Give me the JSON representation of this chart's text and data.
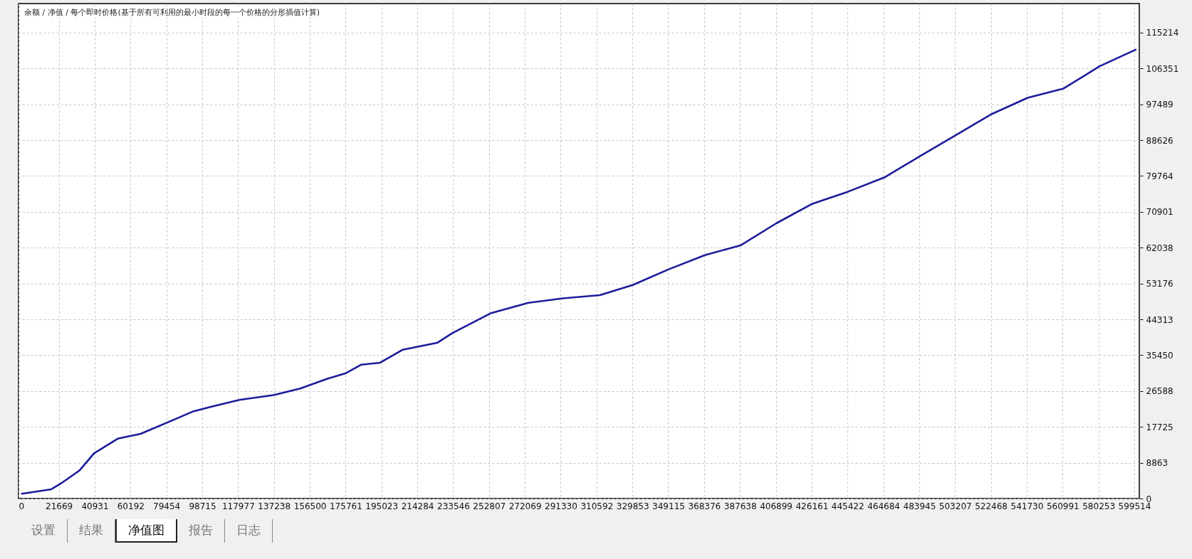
{
  "chart_data": {
    "type": "line",
    "title": "余额 / 净值 / 每个即时价格(基于所有可利用的最小时段的每一个价格的分形插值计算)",
    "x": [
      1800,
      17600,
      22700,
      32900,
      40600,
      53300,
      65600,
      79900,
      94200,
      103400,
      118700,
      137100,
      151400,
      165700,
      175900,
      184100,
      194300,
      206500,
      224900,
      233100,
      253600,
      274000,
      292400,
      312400,
      330000,
      349400,
      368800,
      387900,
      407300,
      426600,
      445800,
      465200,
      484500,
      503700,
      523000,
      542200,
      561500,
      580900,
      600200
    ],
    "series": [
      {
        "color": "#1c1c9c",
        "values": [
          1200,
          2300,
          3700,
          7000,
          11200,
          14800,
          16000,
          18800,
          21600,
          22700,
          24400,
          25600,
          27200,
          29600,
          31000,
          33100,
          33600,
          36800,
          38500,
          40900,
          45800,
          48400,
          49500,
          50300,
          52800,
          56700,
          60200,
          62600,
          68100,
          72900,
          75900,
          79400,
          84700,
          89900,
          95100,
          99100,
          101400,
          106900,
          111000
        ]
      }
    ],
    "xlim": [
      0,
      602200
    ],
    "xticks": [
      0,
      21669,
      40931,
      60192,
      79454,
      98715,
      117977,
      137238,
      156500,
      175761,
      195023,
      214284,
      233546,
      252807,
      272069,
      291330,
      310592,
      329853,
      349115,
      368376,
      387638,
      406899,
      426161,
      445422,
      464684,
      483945,
      503207,
      522468,
      541730,
      560991,
      580253,
      599514
    ],
    "ylim": [
      0,
      122400
    ],
    "yticks": [
      0,
      8863,
      17725,
      26588,
      35450,
      44313,
      53176,
      62038,
      70901,
      79764,
      88626,
      97489,
      106351,
      115214
    ],
    "grid": true,
    "marker": "none",
    "line_style": "solid",
    "annotations": [
      "设置",
      "结果",
      "净值图",
      "报告",
      "日志"
    ]
  }
}
